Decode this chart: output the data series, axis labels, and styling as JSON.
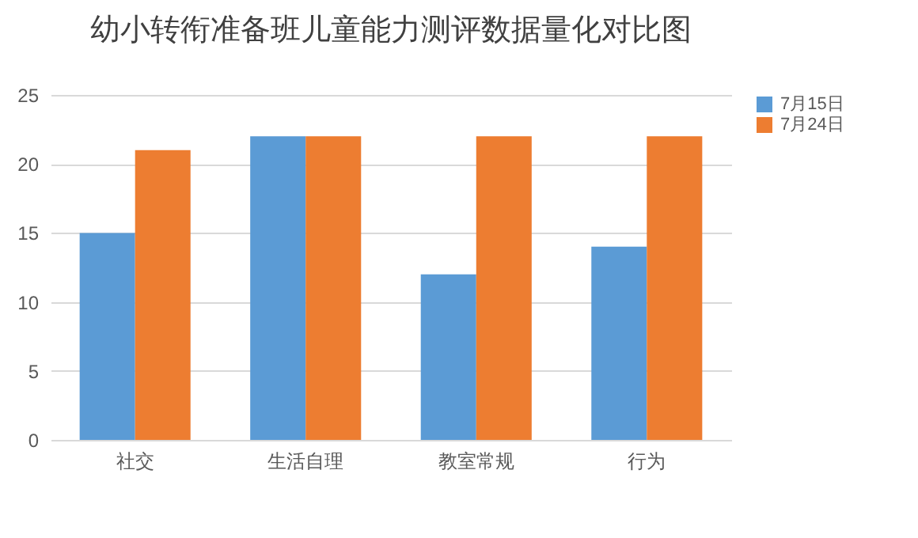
{
  "chart_data": {
    "type": "bar",
    "title": "幼小转衔准备班儿童能力测评数据量化对比图",
    "categories": [
      "社交",
      "生活自理",
      "教室常规",
      "行为"
    ],
    "series": [
      {
        "name": "7月15日",
        "color": "#5b9bd5",
        "values": [
          15,
          22,
          12,
          14
        ]
      },
      {
        "name": "7月24日",
        "color": "#ed7d31",
        "values": [
          21,
          22,
          22,
          22
        ]
      }
    ],
    "ylim": [
      0,
      25
    ],
    "yticks": [
      0,
      5,
      10,
      15,
      20,
      25
    ],
    "grid": "y",
    "legend": "right"
  }
}
